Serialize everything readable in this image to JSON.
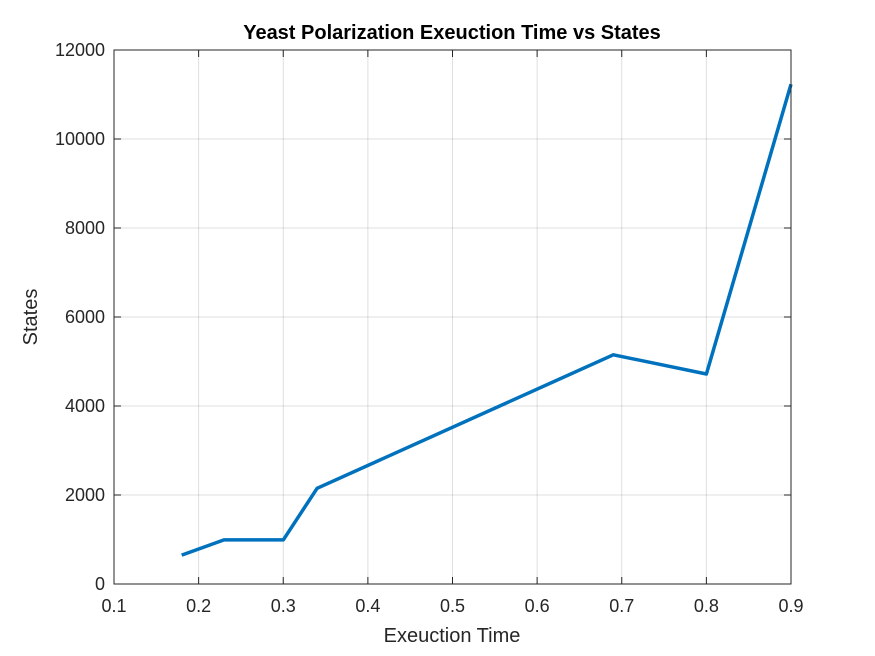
{
  "chart_data": {
    "type": "line",
    "title": "Yeast Polarization Exeuction Time vs States",
    "xlabel": "Exeuction Time",
    "ylabel": "States",
    "xlim": [
      0.1,
      0.9
    ],
    "ylim": [
      0,
      12000
    ],
    "xticks": [
      "0.1",
      "0.2",
      "0.3",
      "0.4",
      "0.5",
      "0.6",
      "0.7",
      "0.8",
      "0.9"
    ],
    "yticks": [
      "0",
      "2000",
      "4000",
      "6000",
      "8000",
      "10000",
      "12000"
    ],
    "grid": true,
    "series": [
      {
        "color": "#0072BD",
        "x": [
          0.18,
          0.23,
          0.3,
          0.34,
          0.69,
          0.8,
          0.9
        ],
        "y": [
          650,
          990,
          990,
          2150,
          5150,
          4720,
          11230
        ]
      }
    ]
  }
}
